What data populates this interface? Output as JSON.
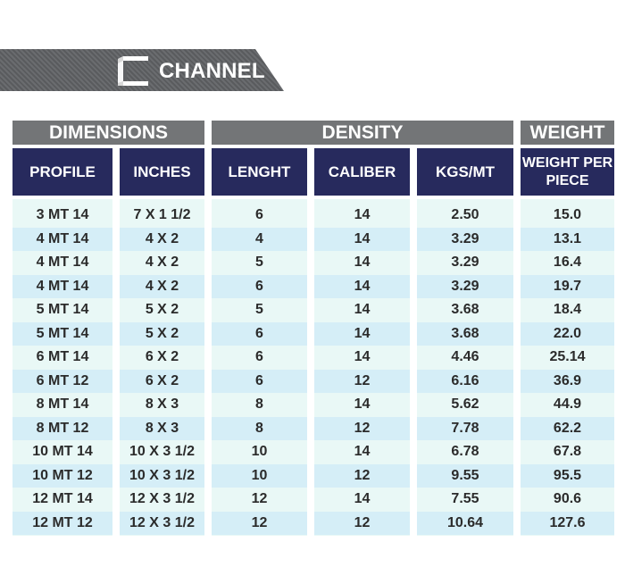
{
  "section": {
    "title": "CHANNEL",
    "icon": "channel-profile-icon"
  },
  "groups": [
    {
      "label": "DIMENSIONS"
    },
    {
      "label": "DENSITY"
    },
    {
      "label": "WEIGHT"
    }
  ],
  "columns": [
    {
      "label": "PROFILE"
    },
    {
      "label": "INCHES"
    },
    {
      "label": "LENGHT"
    },
    {
      "label": "CALIBER"
    },
    {
      "label": "KGS/MT"
    },
    {
      "label": "WEIGHT PER PIECE"
    }
  ],
  "rows": [
    [
      "3 MT 14",
      "7 X 1 1/2",
      "6",
      "14",
      "2.50",
      "15.0"
    ],
    [
      "4 MT 14",
      "4 X 2",
      "4",
      "14",
      "3.29",
      "13.1"
    ],
    [
      "4 MT 14",
      "4 X 2",
      "5",
      "14",
      "3.29",
      "16.4"
    ],
    [
      "4 MT 14",
      "4 X 2",
      "6",
      "14",
      "3.29",
      "19.7"
    ],
    [
      "5 MT 14",
      "5 X 2",
      "5",
      "14",
      "3.68",
      "18.4"
    ],
    [
      "5 MT 14",
      "5 X 2",
      "6",
      "14",
      "3.68",
      "22.0"
    ],
    [
      "6 MT 14",
      "6 X 2",
      "6",
      "14",
      "4.46",
      "25.14"
    ],
    [
      "6 MT 12",
      "6 X 2",
      "6",
      "12",
      "6.16",
      "36.9"
    ],
    [
      "8 MT 14",
      "8 X 3",
      "8",
      "14",
      "5.62",
      "44.9"
    ],
    [
      "8 MT 12",
      "8 X 3",
      "8",
      "12",
      "7.78",
      "62.2"
    ],
    [
      "10 MT 14",
      "10 X 3 1/2",
      "10",
      "14",
      "6.78",
      "67.8"
    ],
    [
      "10 MT 12",
      "10 X 3 1/2",
      "10",
      "12",
      "9.55",
      "95.5"
    ],
    [
      "12 MT 14",
      "12 X 3 1/2",
      "12",
      "14",
      "7.55",
      "90.6"
    ],
    [
      "12 MT 12",
      "12 X 3 1/2",
      "12",
      "12",
      "10.64",
      "127.6"
    ]
  ],
  "colors": {
    "banner": "#5f6164",
    "group_header": "#737577",
    "column_header": "#272a5d",
    "row_light": "#e9f8f6",
    "row_alt": "#d5eef7",
    "text_dark": "#2b2b2b"
  }
}
